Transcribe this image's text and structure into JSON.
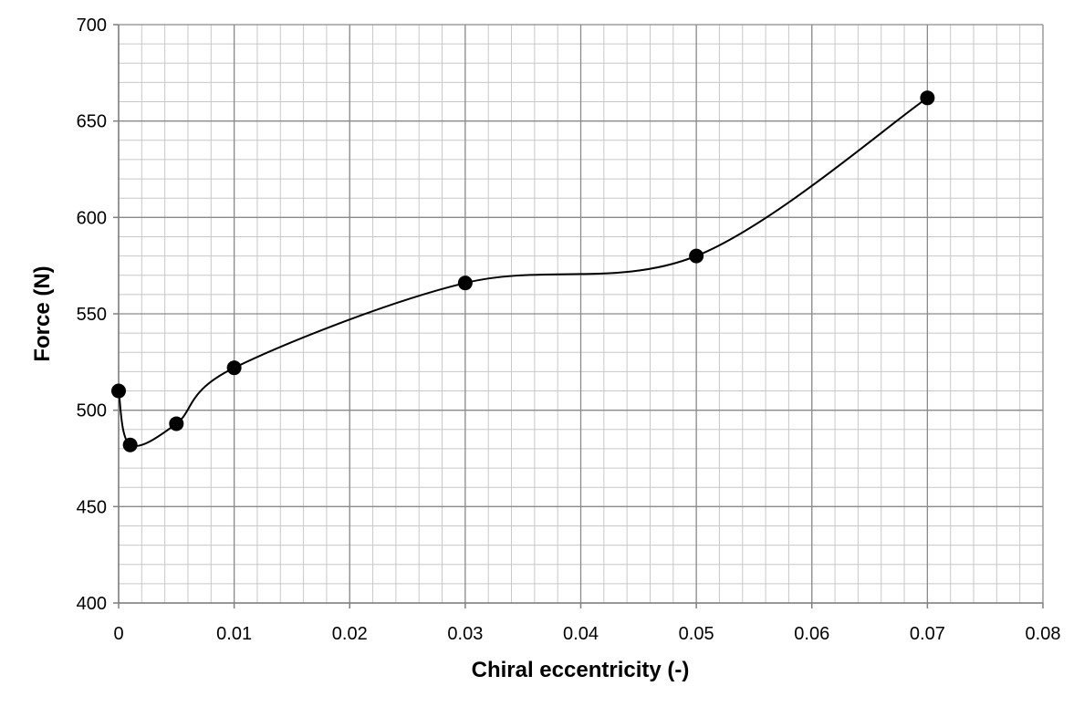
{
  "chart_data": {
    "type": "line",
    "title": "",
    "xlabel": "Chiral eccentricity (-)",
    "ylabel": "Force (N)",
    "xlim": [
      0,
      0.08
    ],
    "ylim": [
      400,
      700
    ],
    "x_major_ticks": [
      0,
      0.01,
      0.02,
      0.03,
      0.04,
      0.05,
      0.06,
      0.07,
      0.08
    ],
    "x_tick_labels": [
      "0",
      "0.01",
      "0.02",
      "0.03",
      "0.04",
      "0.05",
      "0.06",
      "0.07",
      "0.08"
    ],
    "y_major_ticks": [
      400,
      450,
      500,
      550,
      600,
      650,
      700
    ],
    "y_tick_labels": [
      "400",
      "450",
      "500",
      "550",
      "600",
      "650",
      "700"
    ],
    "x_minor_step": 0.002,
    "y_minor_step": 10,
    "grid": true,
    "smooth": true,
    "legend": "none",
    "series": [
      {
        "x": [
          0,
          0.001,
          0.005,
          0.01,
          0.03,
          0.05,
          0.07
        ],
        "y": [
          510,
          482,
          493,
          522,
          566,
          580,
          662
        ],
        "color": "#000000",
        "marker": "circle"
      }
    ]
  }
}
